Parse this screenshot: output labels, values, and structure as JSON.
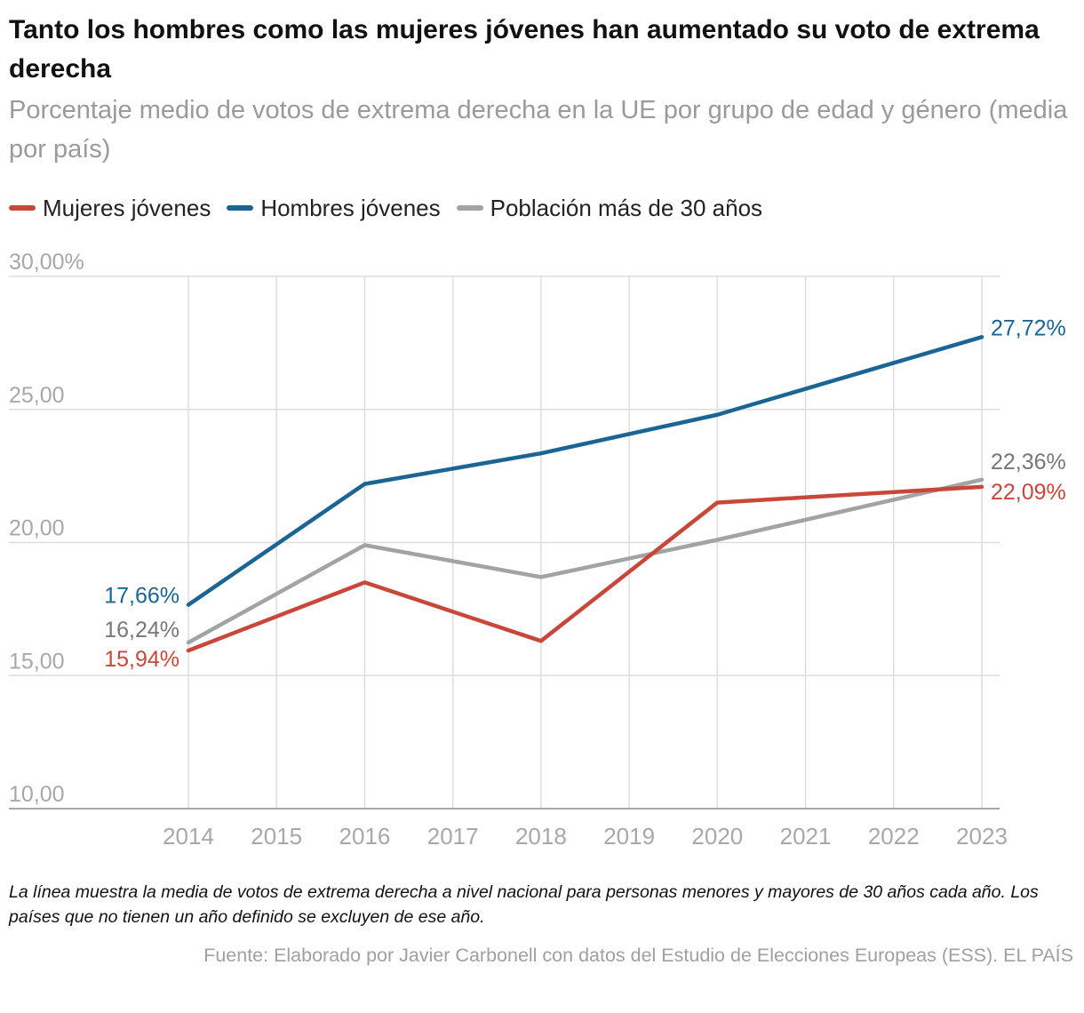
{
  "title": "Tanto los hombres como las mujeres jóvenes han aumentado su voto de extrema derecha",
  "subtitle": "Porcentaje medio de votos de extrema derecha en la UE por grupo de edad y género (media por país)",
  "note": "La línea muestra la media de votos de extrema derecha a nivel nacional para personas menores y mayores de 30 años cada año. Los países que no tienen un año definido se excluyen de ese año.",
  "source": "Fuente: Elaborado por Javier Carbonell con datos del Estudio de Elecciones Europeas (ESS). EL PAÍS",
  "chart_data": {
    "type": "line",
    "title": "Tanto los hombres como las mujeres jóvenes han aumentado su voto de extrema derecha",
    "xlabel": "",
    "ylabel": "",
    "x": [
      2014,
      2015,
      2016,
      2017,
      2018,
      2019,
      2020,
      2021,
      2022,
      2023
    ],
    "x_tick_labels": [
      "2014",
      "2015",
      "2016",
      "2017",
      "2018",
      "2019",
      "2020",
      "2021",
      "2022",
      "2023"
    ],
    "ylim": [
      10,
      30
    ],
    "y_ticks": [
      10,
      15,
      20,
      25,
      30
    ],
    "y_tick_labels": [
      "10,00",
      "15,00",
      "20,00",
      "25,00",
      "30,00%"
    ],
    "grid": true,
    "legend_position": "top-left",
    "series": [
      {
        "name": "Mujeres jóvenes",
        "color": "#c9473a",
        "points": [
          [
            2014,
            15.94
          ],
          [
            2016,
            18.5
          ],
          [
            2018,
            16.3
          ],
          [
            2020,
            21.5
          ],
          [
            2023,
            22.09
          ]
        ],
        "start_label": "15,94%",
        "end_label": "22,09%"
      },
      {
        "name": "Hombres jóvenes",
        "color": "#1a6593",
        "points": [
          [
            2014,
            17.66
          ],
          [
            2016,
            22.2
          ],
          [
            2018,
            23.35
          ],
          [
            2020,
            24.8
          ],
          [
            2023,
            27.72
          ]
        ],
        "start_label": "17,66%",
        "end_label": "27,72%"
      },
      {
        "name": "Población más de 30 años",
        "color": "#a1a4a3",
        "points": [
          [
            2014,
            16.24
          ],
          [
            2016,
            19.9
          ],
          [
            2018,
            18.7
          ],
          [
            2020,
            20.1
          ],
          [
            2023,
            22.36
          ]
        ],
        "start_label": "16,24%",
        "end_label": "22,36%"
      }
    ],
    "label_colors": {
      "Mujeres jóvenes": "#c9473a",
      "Hombres jóvenes": "#1a6593",
      "Población más de 30 años": "#777777"
    },
    "grid_color": "#dddddd",
    "axis_color": "#a8a8a8"
  }
}
